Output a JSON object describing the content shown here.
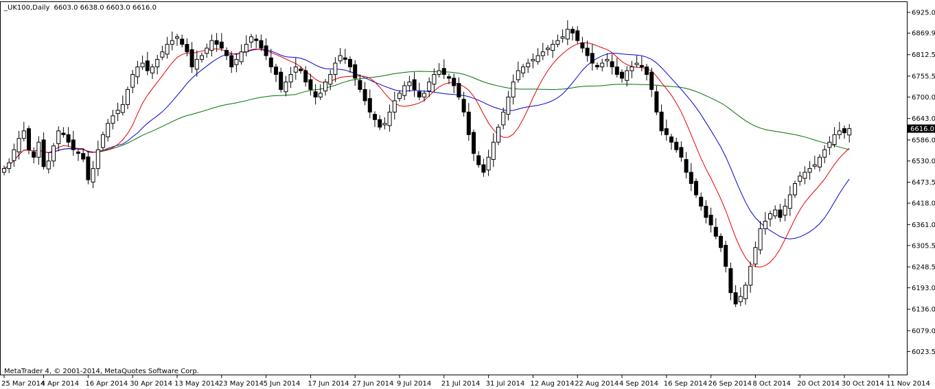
{
  "header": {
    "symbol": "_UK100,Daily",
    "ohlc": "6603.0 6638.0 6603.0 6616.0"
  },
  "copyright": "MetaTrader 4, © 2001-2014, MetaQuotes Software Corp.",
  "colors": {
    "bull": "#ffffff",
    "bear": "#000000",
    "ma_fast": "#e00000",
    "ma_mid": "#0000cc",
    "ma_slow": "#007000",
    "price_label_bg": "#000000"
  },
  "chart_data": {
    "type": "candlestick",
    "ylim": [
      6022.5,
      6925.0
    ],
    "yticks": [
      "6925.0",
      "6869.9",
      "6812.5",
      "6755.5",
      "6700.0",
      "6643.0",
      "6586.0",
      "6530.0",
      "6473.5",
      "6418.0",
      "6361.0",
      "6305.5",
      "6248.5",
      "6193.0",
      "6136.0",
      "6079.0",
      "6023.5"
    ],
    "current_price": "6616.0",
    "xticks": [
      "25 Mar 2014",
      "4 Apr 2014",
      "16 Apr 2014",
      "30 Apr 2014",
      "13 May 2014",
      "23 May 2014",
      "5 Jun 2014",
      "17 Jun 2014",
      "27 Jun 2014",
      "9 Jul 2014",
      "21 Jul 2014",
      "31 Jul 2014",
      "12 Aug 2014",
      "22 Aug 2014",
      "4 Sep 2014",
      "16 Sep 2014",
      "26 Sep 2014",
      "8 Oct 2014",
      "20 Oct 2014",
      "30 Oct 2014",
      "11 Nov 2014"
    ],
    "xtick_index": [
      0,
      8,
      17,
      26,
      35,
      44,
      53,
      62,
      71,
      80,
      89,
      98,
      107,
      116,
      125,
      134,
      143,
      152,
      161,
      170,
      179
    ],
    "closes": [
      6510,
      6525,
      6560,
      6590,
      6610,
      6560,
      6540,
      6580,
      6515,
      6530,
      6570,
      6610,
      6600,
      6580,
      6560,
      6550,
      6535,
      6480,
      6510,
      6560,
      6600,
      6630,
      6650,
      6665,
      6680,
      6720,
      6760,
      6780,
      6790,
      6770,
      6780,
      6800,
      6820,
      6840,
      6850,
      6860,
      6840,
      6820,
      6780,
      6800,
      6810,
      6830,
      6850,
      6840,
      6830,
      6810,
      6780,
      6800,
      6820,
      6840,
      6860,
      6850,
      6830,
      6810,
      6780,
      6760,
      6720,
      6740,
      6760,
      6780,
      6770,
      6740,
      6720,
      6700,
      6710,
      6740,
      6760,
      6790,
      6810,
      6800,
      6780,
      6750,
      6720,
      6690,
      6660,
      6640,
      6620,
      6630,
      6660,
      6690,
      6710,
      6730,
      6740,
      6720,
      6700,
      6710,
      6740,
      6760,
      6770,
      6760,
      6750,
      6730,
      6700,
      6660,
      6600,
      6550,
      6520,
      6500,
      6540,
      6580,
      6620,
      6660,
      6700,
      6740,
      6770,
      6780,
      6790,
      6800,
      6810,
      6820,
      6830,
      6840,
      6850,
      6860,
      6880,
      6870,
      6850,
      6830,
      6810,
      6790,
      6780,
      6790,
      6800,
      6780,
      6760,
      6750,
      6770,
      6780,
      6790,
      6780,
      6760,
      6720,
      6660,
      6610,
      6600,
      6580,
      6560,
      6540,
      6500,
      6470,
      6440,
      6410,
      6380,
      6360,
      6330,
      6300,
      6250,
      6180,
      6150,
      6170,
      6200,
      6250,
      6300,
      6350,
      6370,
      6390,
      6400,
      6380,
      6410,
      6440,
      6470,
      6490,
      6500,
      6510,
      6520,
      6540,
      6560,
      6580,
      6600,
      6610,
      6605,
      6616
    ]
  }
}
